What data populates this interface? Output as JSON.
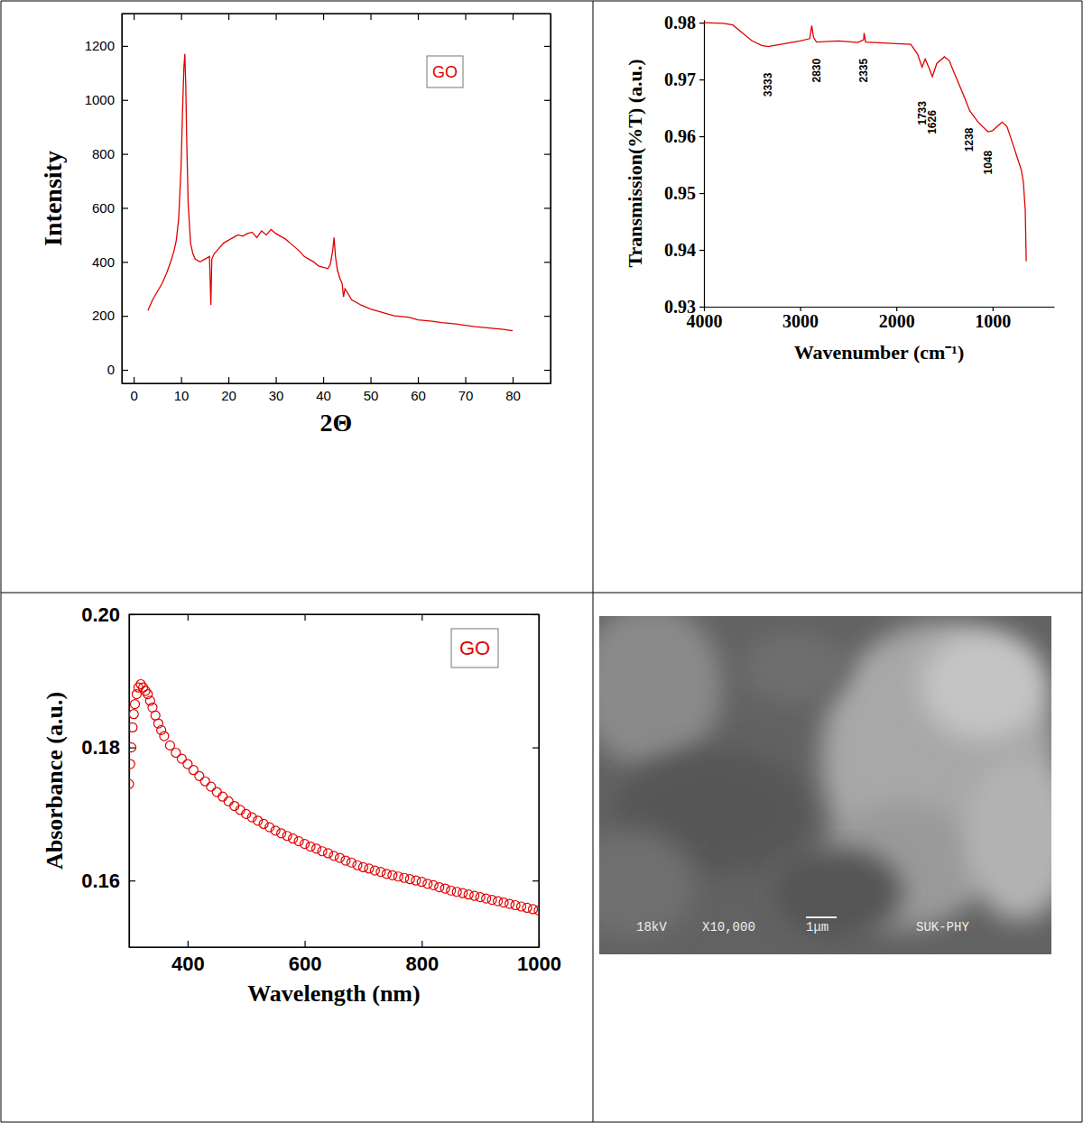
{
  "chart_data": [
    {
      "type": "line",
      "xlabel": "2Θ",
      "ylabel": "Intensity",
      "x": [
        3,
        3.5,
        4,
        5,
        6,
        7,
        8,
        8.5,
        9,
        9.5,
        10,
        10.3,
        10.6,
        10.8,
        11,
        11.2,
        11.5,
        12,
        12.5,
        13,
        14,
        15,
        16,
        16.3,
        16.5,
        17,
        18,
        19,
        20,
        21,
        22,
        23,
        24,
        25,
        26,
        27,
        28,
        29,
        30,
        31,
        32,
        33,
        34,
        35,
        36,
        37,
        38,
        39,
        40,
        41,
        41.5,
        42,
        42.3,
        42.6,
        43,
        43.5,
        44,
        44.3,
        44.6,
        45,
        46,
        48,
        50,
        52,
        55,
        58,
        60,
        63,
        65,
        68,
        70,
        72,
        75,
        78,
        80
      ],
      "series": [
        {
          "name": "GO",
          "color": "#e00000",
          "values": [
            220,
            240,
            260,
            290,
            320,
            360,
            410,
            440,
            480,
            560,
            750,
            950,
            1120,
            1170,
            1050,
            850,
            620,
            470,
            430,
            410,
            400,
            410,
            420,
            240,
            410,
            430,
            450,
            470,
            480,
            490,
            500,
            495,
            505,
            510,
            490,
            515,
            500,
            520,
            505,
            495,
            485,
            470,
            455,
            440,
            420,
            410,
            400,
            385,
            380,
            375,
            390,
            440,
            490,
            420,
            370,
            340,
            320,
            270,
            300,
            290,
            260,
            240,
            225,
            215,
            200,
            195,
            185,
            180,
            175,
            170,
            165,
            160,
            155,
            150,
            145
          ]
        }
      ],
      "xlim": [
        -2.5,
        88
      ],
      "ylim": [
        -50,
        1320
      ],
      "xticks": [
        0,
        10,
        20,
        30,
        40,
        50,
        60,
        70,
        80
      ],
      "yticks": [
        0,
        200,
        400,
        600,
        800,
        1000,
        1200
      ],
      "legend": "upper right"
    },
    {
      "type": "line",
      "xlabel": "Wavenumber (cm⁻¹)",
      "ylabel": "Transmission(%T) (a.u.)",
      "x": [
        4000,
        3800,
        3700,
        3600,
        3500,
        3400,
        3333,
        3200,
        3000,
        2900,
        2880,
        2860,
        2830,
        2600,
        2400,
        2340,
        2335,
        2320,
        2000,
        1850,
        1780,
        1733,
        1700,
        1650,
        1626,
        1580,
        1500,
        1450,
        1400,
        1300,
        1238,
        1150,
        1048,
        1000,
        900,
        850,
        800,
        750,
        700,
        680,
        660,
        650
      ],
      "series": [
        {
          "name": "GO",
          "color": "#e00000",
          "values": [
            0.98,
            0.9799,
            0.9796,
            0.9782,
            0.9768,
            0.976,
            0.9758,
            0.9762,
            0.9768,
            0.9772,
            0.9795,
            0.9774,
            0.9766,
            0.9768,
            0.9765,
            0.977,
            0.9782,
            0.9766,
            0.9763,
            0.9762,
            0.9745,
            0.9722,
            0.9736,
            0.9716,
            0.9705,
            0.9728,
            0.974,
            0.9733,
            0.9712,
            0.9672,
            0.9645,
            0.9625,
            0.9608,
            0.961,
            0.9625,
            0.9617,
            0.9592,
            0.9566,
            0.954,
            0.952,
            0.947,
            0.938
          ]
        }
      ],
      "xlim": [
        4000,
        360
      ],
      "ylim": [
        0.93,
        0.9805
      ],
      "xticks": [
        4000,
        3000,
        2000,
        1000
      ],
      "yticks": [
        0.93,
        0.94,
        0.95,
        0.96,
        0.97,
        0.98
      ],
      "annotations": [
        {
          "label": "3333",
          "x": 3333,
          "y": 0.9712
        },
        {
          "label": "2830",
          "x": 2830,
          "y": 0.9737
        },
        {
          "label": "2335",
          "x": 2335,
          "y": 0.9737
        },
        {
          "label": "1733",
          "x": 1733,
          "y": 0.9662
        },
        {
          "label": "1626",
          "x": 1626,
          "y": 0.9646
        },
        {
          "label": "1238",
          "x": 1238,
          "y": 0.9615
        },
        {
          "label": "1048",
          "x": 1048,
          "y": 0.9575
        }
      ]
    },
    {
      "type": "scatter",
      "marker": "circle",
      "xlabel": "Wavelength (nm)",
      "ylabel": "Absorbance (a.u.)",
      "x": [
        300,
        302,
        304,
        306,
        308,
        310,
        313,
        316,
        320,
        324,
        328,
        332,
        336,
        340,
        345,
        350,
        355,
        360,
        370,
        380,
        390,
        400,
        410,
        420,
        430,
        440,
        450,
        460,
        470,
        480,
        490,
        500,
        510,
        520,
        530,
        540,
        550,
        560,
        570,
        580,
        590,
        600,
        610,
        620,
        630,
        640,
        650,
        660,
        670,
        680,
        690,
        700,
        710,
        720,
        730,
        740,
        750,
        760,
        770,
        780,
        790,
        800,
        810,
        820,
        830,
        840,
        850,
        860,
        870,
        880,
        890,
        900,
        910,
        920,
        930,
        940,
        950,
        960,
        970,
        980,
        990,
        1000
      ],
      "series": [
        {
          "name": "GO",
          "color": "#e00000",
          "values": [
            0.1745,
            0.1775,
            0.18,
            0.183,
            0.185,
            0.1865,
            0.188,
            0.189,
            0.1895,
            0.189,
            0.1885,
            0.188,
            0.187,
            0.186,
            0.1848,
            0.1836,
            0.1826,
            0.1817,
            0.1803,
            0.1792,
            0.1783,
            0.1775,
            0.1766,
            0.1757,
            0.1749,
            0.1741,
            0.1733,
            0.1726,
            0.1719,
            0.1712,
            0.1706,
            0.17,
            0.1695,
            0.169,
            0.1685,
            0.168,
            0.1675,
            0.1671,
            0.1667,
            0.1663,
            0.1659,
            0.1655,
            0.1651,
            0.1648,
            0.1644,
            0.1641,
            0.1637,
            0.1634,
            0.163,
            0.1627,
            0.1623,
            0.162,
            0.1618,
            0.1615,
            0.1613,
            0.161,
            0.1608,
            0.1606,
            0.1604,
            0.1602,
            0.16,
            0.1598,
            0.1595,
            0.1593,
            0.159,
            0.1588,
            0.1585,
            0.1583,
            0.1581,
            0.1579,
            0.1577,
            0.1575,
            0.1573,
            0.1571,
            0.1569,
            0.1567,
            0.1565,
            0.1563,
            0.1561,
            0.1559,
            0.1557,
            0.1555
          ]
        }
      ],
      "xlim": [
        300,
        1000
      ],
      "ylim": [
        0.15,
        0.2
      ],
      "xticks": [
        400,
        600,
        800,
        1000
      ],
      "yticks": [
        0.16,
        0.18,
        {
          "value": 0.2,
          "label": "0.20"
        }
      ],
      "legend": "upper right"
    }
  ],
  "image": {
    "accelerating_voltage": "18kV",
    "magnification": "X10,000",
    "scale_bar": "1μm",
    "label": "SUK-PHY"
  }
}
